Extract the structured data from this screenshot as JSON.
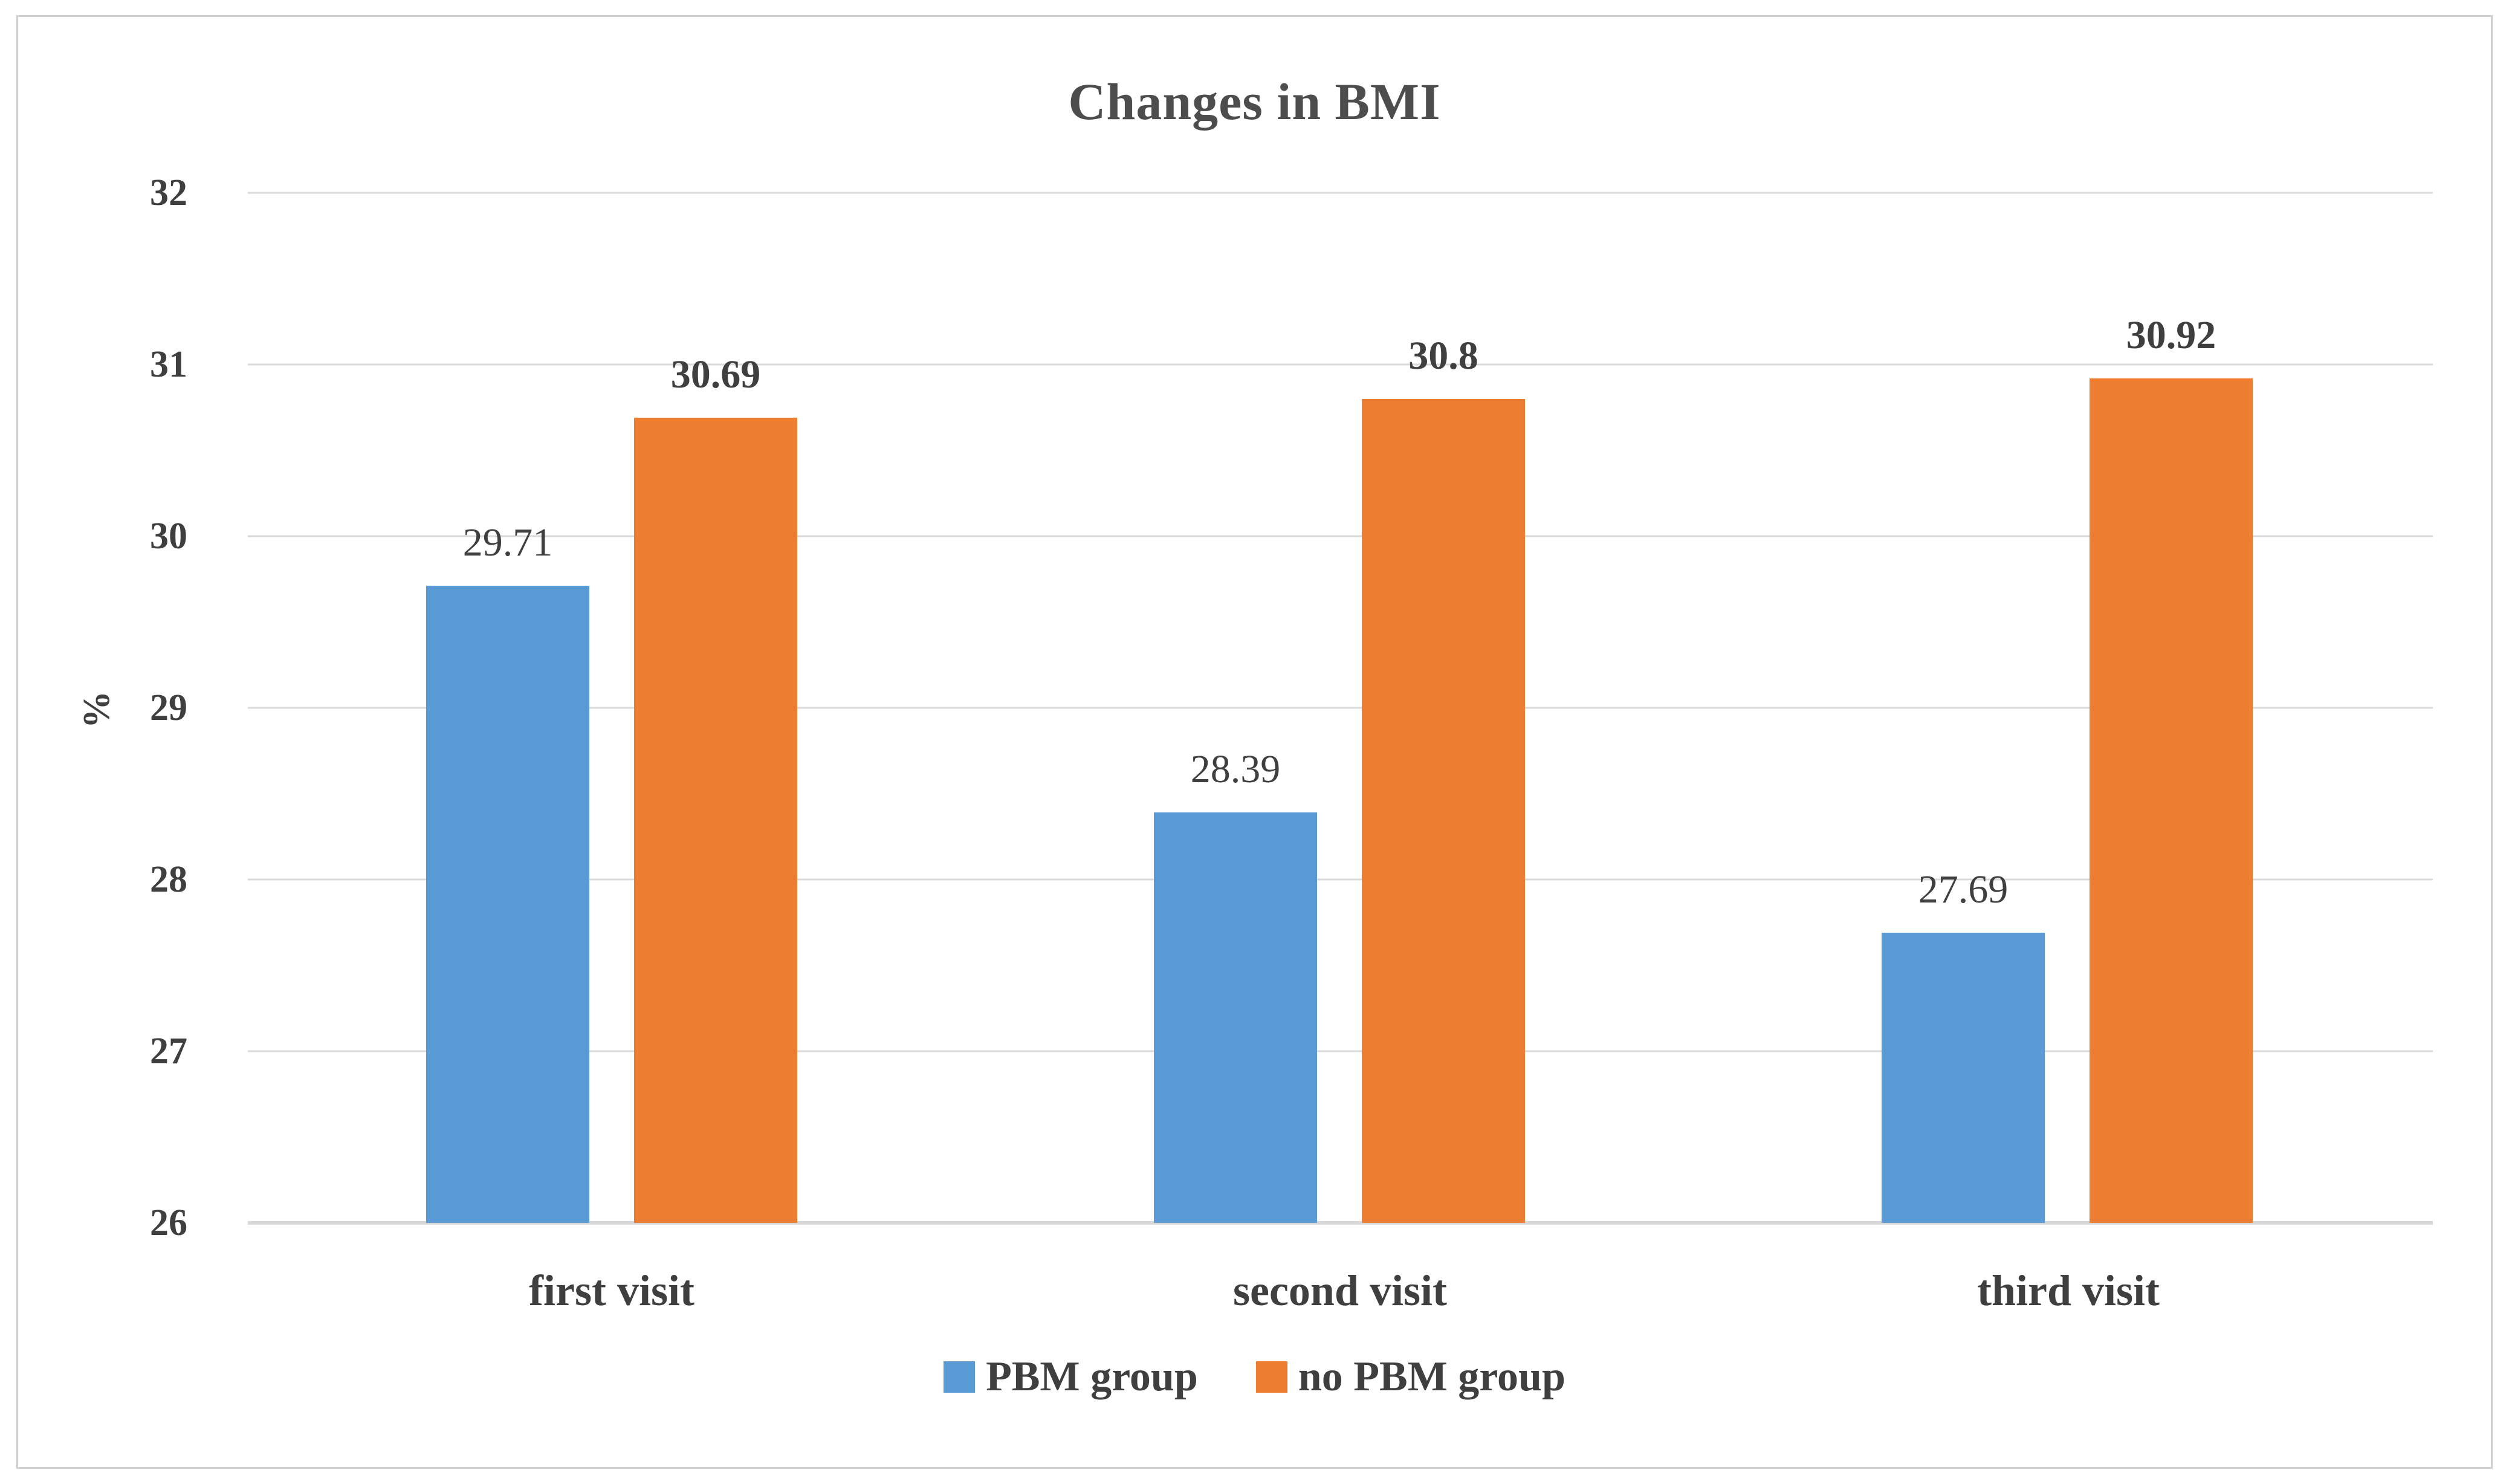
{
  "chart_data": {
    "type": "bar",
    "title": "Changes in BMI",
    "xlabel": "",
    "ylabel": "%",
    "categories": [
      "first visit",
      "second visit",
      "third visit"
    ],
    "series": [
      {
        "name": "PBM group",
        "color": "#5B9BD5",
        "values": [
          29.71,
          28.39,
          27.69
        ],
        "data_labels": [
          "29.71",
          "28.39",
          "27.69"
        ]
      },
      {
        "name": "no PBM group",
        "color": "#ED7D31",
        "values": [
          30.69,
          30.8,
          30.92
        ],
        "data_labels": [
          "30.69",
          "30.8",
          "30.92"
        ]
      }
    ],
    "y_axis": {
      "min": 26,
      "max": 32,
      "step": 1,
      "tick_labels": [
        "32",
        "31",
        "30",
        "29",
        "28",
        "27",
        "26"
      ]
    },
    "grid": true,
    "legend_position": "bottom"
  },
  "style": {
    "text_color": "#3F3F3F",
    "title_color": "#4D4D4D",
    "gridline_color": "#D9D9D9",
    "frame_border_color": "#CFCFCF",
    "background": "#FFFFFF"
  }
}
